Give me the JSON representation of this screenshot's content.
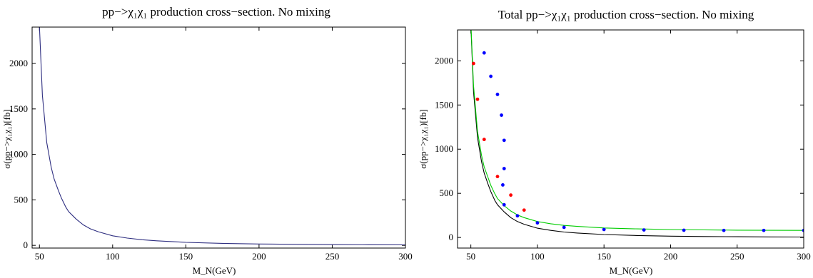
{
  "chart_data": [
    {
      "type": "line",
      "title": "pp−>χ₁χ₁ production cross−section. No mixing",
      "xlabel": "M_N(GeV)",
      "ylabel": "σ(pp−>χ₁χ₁)[fb]",
      "xlim": [
        45,
        300
      ],
      "ylim": [
        -30,
        2400
      ],
      "xticks": [
        50,
        100,
        150,
        200,
        250,
        300
      ],
      "yticks": [
        0,
        500,
        1000,
        1500,
        2000
      ],
      "grid": false,
      "series": [
        {
          "color": "#2e2e80",
          "x": [
            50,
            52,
            55,
            58,
            60,
            63,
            65,
            68,
            70,
            75,
            80,
            85,
            90,
            100,
            110,
            120,
            130,
            150,
            175,
            200,
            225,
            250,
            275,
            300
          ],
          "y": [
            2400,
            1650,
            1130,
            860,
            730,
            600,
            520,
            420,
            370,
            290,
            225,
            180,
            150,
            105,
            80,
            62,
            50,
            33,
            22,
            15,
            11,
            8,
            6,
            5
          ]
        }
      ]
    },
    {
      "type": "line",
      "title": "Total pp−>χ₁χ₁ production cross−section. No mixing",
      "xlabel": "M_N(GeV)",
      "ylabel": "σ(pp−>χ₁χ₁)[fb]",
      "xlim": [
        40,
        300
      ],
      "ylim": [
        -120,
        2350
      ],
      "xticks": [
        50,
        100,
        150,
        200,
        250,
        300
      ],
      "yticks": [
        0,
        500,
        1000,
        1500,
        2000
      ],
      "grid": false,
      "series": [
        {
          "color": "#000000",
          "mode": "line",
          "x": [
            50,
            52,
            55,
            58,
            60,
            63,
            65,
            68,
            70,
            75,
            80,
            85,
            90,
            100,
            110,
            120,
            130,
            150,
            175,
            200,
            225,
            250,
            275,
            300
          ],
          "y": [
            2400,
            1650,
            1130,
            860,
            730,
            600,
            520,
            420,
            370,
            290,
            225,
            180,
            150,
            105,
            80,
            62,
            50,
            33,
            22,
            15,
            11,
            8,
            6,
            5
          ]
        },
        {
          "color": "#00cc00",
          "mode": "line",
          "x": [
            50,
            52,
            55,
            58,
            60,
            63,
            65,
            68,
            70,
            75,
            80,
            85,
            90,
            100,
            110,
            120,
            130,
            150,
            175,
            200,
            225,
            250,
            275,
            300
          ],
          "y": [
            2420,
            1720,
            1200,
            930,
            800,
            675,
            590,
            495,
            440,
            360,
            300,
            255,
            225,
            180,
            155,
            137,
            125,
            108,
            97,
            90,
            86,
            83,
            81,
            80
          ]
        },
        {
          "color": "#ff0000",
          "mode": "points",
          "x": [
            52,
            55,
            60,
            70,
            80,
            90
          ],
          "y": [
            1970,
            1565,
            1110,
            690,
            480,
            310
          ]
        },
        {
          "color": "#0000ff",
          "mode": "points",
          "x": [
            60,
            65,
            70,
            73,
            75,
            75,
            74,
            75,
            85,
            100,
            120,
            150,
            180,
            210,
            240,
            270,
            300
          ],
          "y": [
            2090,
            1825,
            1620,
            1385,
            1100,
            780,
            595,
            370,
            245,
            165,
            115,
            90,
            85,
            82,
            80,
            80,
            80
          ]
        }
      ]
    }
  ]
}
